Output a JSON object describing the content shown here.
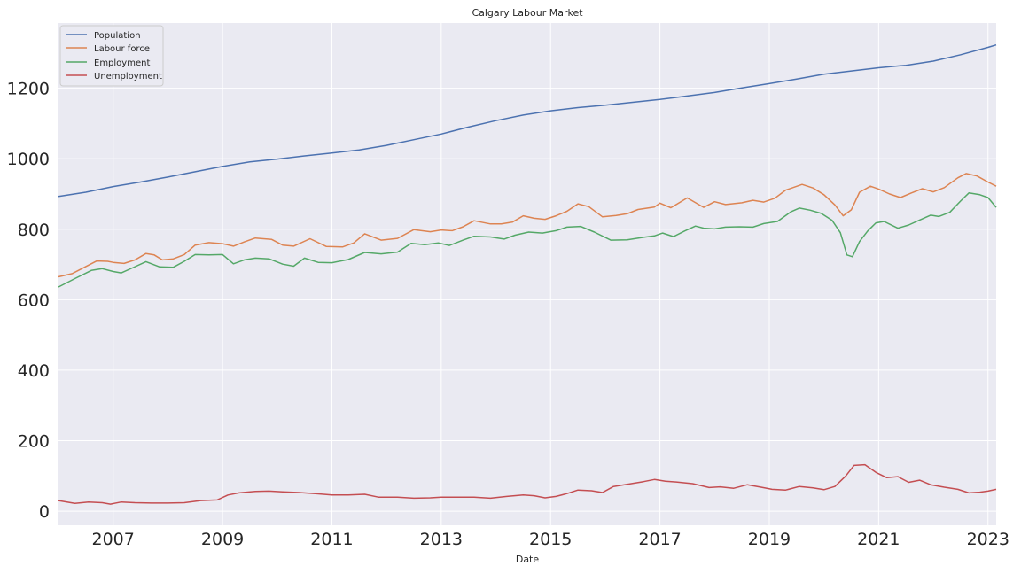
{
  "chart_data": {
    "type": "line",
    "title": "Calgary Labour Market",
    "xlabel": "Date",
    "ylabel": "",
    "xlim": [
      2006.0,
      2023.15
    ],
    "ylim": [
      -40,
      1385
    ],
    "x_ticks": [
      "2007",
      "2009",
      "2011",
      "2013",
      "2015",
      "2017",
      "2019",
      "2021",
      "2023"
    ],
    "y_ticks": [
      "0",
      "200",
      "400",
      "600",
      "800",
      "1000",
      "1200"
    ],
    "grid": true,
    "legend_position": "top-left",
    "series": [
      {
        "name": "Population",
        "color": "#4c72b0",
        "points": [
          [
            2006.0,
            893
          ],
          [
            2006.5,
            905
          ],
          [
            2007.0,
            921
          ],
          [
            2007.5,
            934
          ],
          [
            2008.0,
            948
          ],
          [
            2008.5,
            963
          ],
          [
            2009.0,
            978
          ],
          [
            2009.5,
            991
          ],
          [
            2010.0,
            999
          ],
          [
            2010.5,
            1008
          ],
          [
            2011.0,
            1016
          ],
          [
            2011.5,
            1025
          ],
          [
            2012.0,
            1038
          ],
          [
            2012.5,
            1054
          ],
          [
            2013.0,
            1070
          ],
          [
            2013.5,
            1090
          ],
          [
            2014.0,
            1108
          ],
          [
            2014.5,
            1124
          ],
          [
            2015.0,
            1136
          ],
          [
            2015.5,
            1145
          ],
          [
            2016.0,
            1152
          ],
          [
            2016.5,
            1160
          ],
          [
            2017.0,
            1168
          ],
          [
            2017.5,
            1178
          ],
          [
            2018.0,
            1188
          ],
          [
            2018.5,
            1201
          ],
          [
            2019.0,
            1213
          ],
          [
            2019.5,
            1226
          ],
          [
            2020.0,
            1240
          ],
          [
            2020.5,
            1249
          ],
          [
            2021.0,
            1258
          ],
          [
            2021.5,
            1265
          ],
          [
            2022.0,
            1277
          ],
          [
            2022.5,
            1295
          ],
          [
            2023.0,
            1316
          ],
          [
            2023.15,
            1323
          ]
        ]
      },
      {
        "name": "Labour force",
        "color": "#dd8452",
        "points": [
          [
            2006.0,
            665
          ],
          [
            2006.25,
            674
          ],
          [
            2006.5,
            694
          ],
          [
            2006.7,
            710
          ],
          [
            2006.9,
            709
          ],
          [
            2007.0,
            706
          ],
          [
            2007.2,
            703
          ],
          [
            2007.4,
            713
          ],
          [
            2007.6,
            731
          ],
          [
            2007.75,
            727
          ],
          [
            2007.9,
            713
          ],
          [
            2008.1,
            716
          ],
          [
            2008.3,
            728
          ],
          [
            2008.5,
            755
          ],
          [
            2008.75,
            762
          ],
          [
            2009.0,
            759
          ],
          [
            2009.2,
            752
          ],
          [
            2009.4,
            764
          ],
          [
            2009.6,
            775
          ],
          [
            2009.9,
            771
          ],
          [
            2010.1,
            755
          ],
          [
            2010.3,
            752
          ],
          [
            2010.6,
            773
          ],
          [
            2010.9,
            751
          ],
          [
            2011.2,
            750
          ],
          [
            2011.4,
            761
          ],
          [
            2011.6,
            787
          ],
          [
            2011.9,
            769
          ],
          [
            2012.2,
            774
          ],
          [
            2012.5,
            799
          ],
          [
            2012.8,
            793
          ],
          [
            2013.0,
            798
          ],
          [
            2013.2,
            796
          ],
          [
            2013.4,
            807
          ],
          [
            2013.6,
            824
          ],
          [
            2013.9,
            815
          ],
          [
            2014.1,
            815
          ],
          [
            2014.3,
            820
          ],
          [
            2014.5,
            838
          ],
          [
            2014.7,
            831
          ],
          [
            2014.9,
            828
          ],
          [
            2015.1,
            838
          ],
          [
            2015.3,
            851
          ],
          [
            2015.5,
            872
          ],
          [
            2015.7,
            864
          ],
          [
            2015.95,
            835
          ],
          [
            2016.2,
            839
          ],
          [
            2016.4,
            844
          ],
          [
            2016.6,
            856
          ],
          [
            2016.9,
            863
          ],
          [
            2017.0,
            874
          ],
          [
            2017.2,
            861
          ],
          [
            2017.5,
            889
          ],
          [
            2017.8,
            862
          ],
          [
            2018.0,
            878
          ],
          [
            2018.2,
            870
          ],
          [
            2018.5,
            875
          ],
          [
            2018.7,
            882
          ],
          [
            2018.9,
            877
          ],
          [
            2019.1,
            888
          ],
          [
            2019.3,
            911
          ],
          [
            2019.6,
            927
          ],
          [
            2019.8,
            917
          ],
          [
            2020.0,
            898
          ],
          [
            2020.2,
            869
          ],
          [
            2020.35,
            838
          ],
          [
            2020.5,
            855
          ],
          [
            2020.65,
            905
          ],
          [
            2020.85,
            922
          ],
          [
            2021.0,
            914
          ],
          [
            2021.2,
            900
          ],
          [
            2021.4,
            890
          ],
          [
            2021.6,
            903
          ],
          [
            2021.8,
            915
          ],
          [
            2022.0,
            906
          ],
          [
            2022.2,
            918
          ],
          [
            2022.45,
            946
          ],
          [
            2022.6,
            958
          ],
          [
            2022.8,
            951
          ],
          [
            2023.0,
            934
          ],
          [
            2023.15,
            922
          ]
        ]
      },
      {
        "name": "Employment",
        "color": "#55a868",
        "points": [
          [
            2006.0,
            636
          ],
          [
            2006.3,
            660
          ],
          [
            2006.6,
            683
          ],
          [
            2006.8,
            688
          ],
          [
            2007.0,
            680
          ],
          [
            2007.15,
            676
          ],
          [
            2007.35,
            690
          ],
          [
            2007.6,
            708
          ],
          [
            2007.85,
            693
          ],
          [
            2008.1,
            692
          ],
          [
            2008.3,
            709
          ],
          [
            2008.5,
            728
          ],
          [
            2008.75,
            727
          ],
          [
            2009.0,
            728
          ],
          [
            2009.2,
            702
          ],
          [
            2009.4,
            713
          ],
          [
            2009.6,
            718
          ],
          [
            2009.85,
            716
          ],
          [
            2010.1,
            701
          ],
          [
            2010.3,
            695
          ],
          [
            2010.5,
            718
          ],
          [
            2010.75,
            706
          ],
          [
            2011.0,
            705
          ],
          [
            2011.3,
            714
          ],
          [
            2011.6,
            734
          ],
          [
            2011.9,
            730
          ],
          [
            2012.2,
            735
          ],
          [
            2012.45,
            760
          ],
          [
            2012.7,
            756
          ],
          [
            2012.95,
            761
          ],
          [
            2013.15,
            754
          ],
          [
            2013.4,
            769
          ],
          [
            2013.6,
            780
          ],
          [
            2013.9,
            778
          ],
          [
            2014.15,
            772
          ],
          [
            2014.35,
            783
          ],
          [
            2014.6,
            792
          ],
          [
            2014.85,
            789
          ],
          [
            2015.1,
            796
          ],
          [
            2015.3,
            806
          ],
          [
            2015.55,
            808
          ],
          [
            2015.8,
            792
          ],
          [
            2016.1,
            769
          ],
          [
            2016.4,
            770
          ],
          [
            2016.7,
            777
          ],
          [
            2016.9,
            781
          ],
          [
            2017.05,
            789
          ],
          [
            2017.25,
            779
          ],
          [
            2017.45,
            795
          ],
          [
            2017.65,
            809
          ],
          [
            2017.8,
            803
          ],
          [
            2018.0,
            801
          ],
          [
            2018.2,
            806
          ],
          [
            2018.45,
            807
          ],
          [
            2018.7,
            806
          ],
          [
            2018.9,
            816
          ],
          [
            2019.15,
            822
          ],
          [
            2019.4,
            850
          ],
          [
            2019.55,
            860
          ],
          [
            2019.75,
            854
          ],
          [
            2019.95,
            845
          ],
          [
            2020.15,
            825
          ],
          [
            2020.3,
            790
          ],
          [
            2020.42,
            727
          ],
          [
            2020.52,
            722
          ],
          [
            2020.65,
            765
          ],
          [
            2020.8,
            795
          ],
          [
            2020.95,
            818
          ],
          [
            2021.1,
            822
          ],
          [
            2021.35,
            803
          ],
          [
            2021.55,
            812
          ],
          [
            2021.75,
            826
          ],
          [
            2021.95,
            840
          ],
          [
            2022.1,
            836
          ],
          [
            2022.3,
            848
          ],
          [
            2022.5,
            880
          ],
          [
            2022.65,
            903
          ],
          [
            2022.85,
            898
          ],
          [
            2023.0,
            890
          ],
          [
            2023.15,
            862
          ]
        ]
      },
      {
        "name": "Unemployment",
        "color": "#c44e52",
        "points": [
          [
            2006.0,
            30
          ],
          [
            2006.3,
            22
          ],
          [
            2006.55,
            26
          ],
          [
            2006.8,
            24
          ],
          [
            2006.95,
            20
          ],
          [
            2007.15,
            26
          ],
          [
            2007.4,
            24
          ],
          [
            2007.7,
            23
          ],
          [
            2008.0,
            23
          ],
          [
            2008.3,
            24
          ],
          [
            2008.6,
            30
          ],
          [
            2008.9,
            32
          ],
          [
            2009.1,
            46
          ],
          [
            2009.3,
            52
          ],
          [
            2009.6,
            56
          ],
          [
            2009.85,
            57
          ],
          [
            2010.1,
            55
          ],
          [
            2010.4,
            53
          ],
          [
            2010.7,
            50
          ],
          [
            2011.0,
            46
          ],
          [
            2011.3,
            46
          ],
          [
            2011.6,
            48
          ],
          [
            2011.85,
            40
          ],
          [
            2012.2,
            40
          ],
          [
            2012.5,
            37
          ],
          [
            2012.8,
            38
          ],
          [
            2013.0,
            40
          ],
          [
            2013.3,
            40
          ],
          [
            2013.6,
            40
          ],
          [
            2013.9,
            37
          ],
          [
            2014.2,
            42
          ],
          [
            2014.5,
            46
          ],
          [
            2014.7,
            44
          ],
          [
            2014.9,
            38
          ],
          [
            2015.1,
            42
          ],
          [
            2015.3,
            50
          ],
          [
            2015.5,
            60
          ],
          [
            2015.75,
            58
          ],
          [
            2015.95,
            53
          ],
          [
            2016.15,
            70
          ],
          [
            2016.4,
            76
          ],
          [
            2016.7,
            84
          ],
          [
            2016.9,
            90
          ],
          [
            2017.1,
            85
          ],
          [
            2017.3,
            83
          ],
          [
            2017.6,
            78
          ],
          [
            2017.9,
            67
          ],
          [
            2018.1,
            69
          ],
          [
            2018.35,
            65
          ],
          [
            2018.6,
            75
          ],
          [
            2018.85,
            68
          ],
          [
            2019.05,
            62
          ],
          [
            2019.3,
            60
          ],
          [
            2019.55,
            70
          ],
          [
            2019.8,
            66
          ],
          [
            2020.0,
            61
          ],
          [
            2020.2,
            70
          ],
          [
            2020.4,
            100
          ],
          [
            2020.55,
            130
          ],
          [
            2020.75,
            132
          ],
          [
            2020.95,
            110
          ],
          [
            2021.15,
            95
          ],
          [
            2021.35,
            98
          ],
          [
            2021.55,
            82
          ],
          [
            2021.75,
            88
          ],
          [
            2021.95,
            75
          ],
          [
            2022.2,
            68
          ],
          [
            2022.45,
            62
          ],
          [
            2022.65,
            52
          ],
          [
            2022.85,
            54
          ],
          [
            2023.0,
            57
          ],
          [
            2023.15,
            62
          ]
        ]
      }
    ]
  }
}
